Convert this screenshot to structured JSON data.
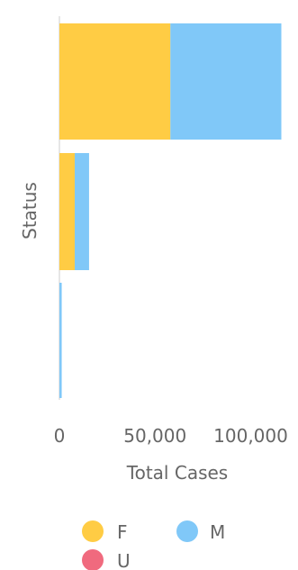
{
  "chart_data": {
    "type": "bar",
    "orientation": "horizontal",
    "stacked": true,
    "title": "",
    "xlabel": "Total Cases",
    "ylabel": "Status",
    "categories": [
      "",
      "",
      ""
    ],
    "series": [
      {
        "name": "F",
        "color": "#FFCC44",
        "values": [
          58000,
          8000,
          0
        ]
      },
      {
        "name": "M",
        "color": "#80C8F8",
        "values": [
          58000,
          7500,
          1200
        ]
      },
      {
        "name": "U",
        "color": "#F06A7E",
        "values": [
          0,
          0,
          0
        ]
      }
    ],
    "xlim": [
      0,
      112000
    ],
    "xticks": [
      {
        "value": 0,
        "label": "0"
      },
      {
        "value": 50000,
        "label": "50,000"
      },
      {
        "value": 100000,
        "label": "100,000"
      }
    ],
    "grid": false,
    "legend": {
      "position": "bottom"
    }
  }
}
